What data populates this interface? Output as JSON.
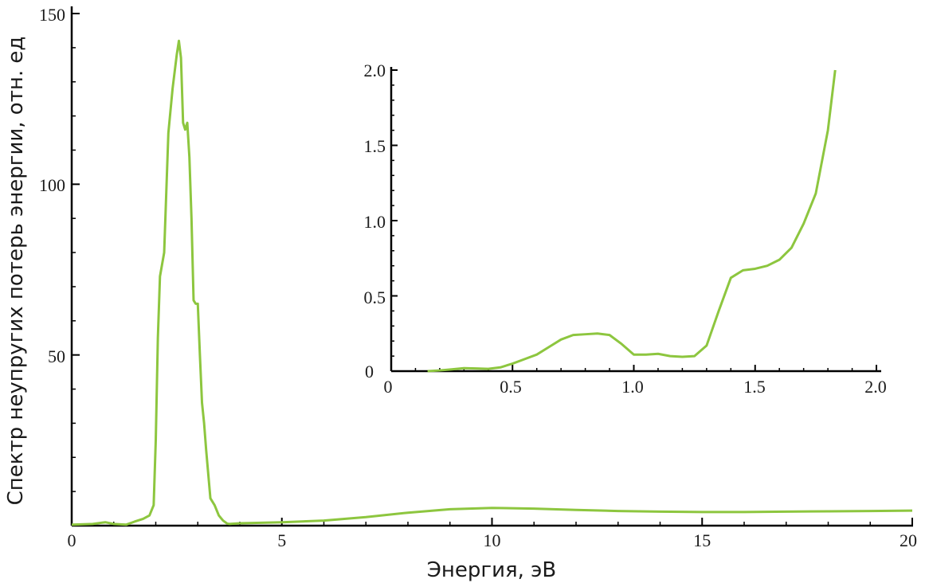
{
  "colors": {
    "line": "#8dc63f",
    "axis": "#000000"
  },
  "chart_data": [
    {
      "type": "line",
      "role": "main",
      "xlabel": "Энергия, эВ",
      "ylabel": "Спектр неупругих потерь энергии, отн. ед",
      "xlim": [
        0,
        20
      ],
      "ylim": [
        0,
        150
      ],
      "xticks": [
        0,
        5,
        10,
        15,
        20
      ],
      "xtick_labels": [
        "0",
        "5",
        "10",
        "15",
        "20"
      ],
      "yticks": [
        50,
        100,
        150
      ],
      "ytick_labels": [
        "50",
        "100",
        "150"
      ],
      "grid": false,
      "series": [
        {
          "x": [
            0,
            0.5,
            0.8,
            1.0,
            1.3,
            1.5,
            1.7,
            1.85,
            1.95,
            2.0,
            2.05,
            2.1,
            2.2,
            2.3,
            2.4,
            2.5,
            2.55,
            2.6,
            2.65,
            2.7,
            2.75,
            2.8,
            2.85,
            2.9,
            2.95,
            3.0,
            3.05,
            3.1,
            3.15,
            3.2,
            3.3,
            3.4,
            3.5,
            3.6,
            3.7,
            3.75,
            4.0,
            5.0,
            6.0,
            7.0,
            8.0,
            9.0,
            10.0,
            11.0,
            12.0,
            13.0,
            14.0,
            15.0,
            16.0,
            17.0,
            18.0,
            19.0,
            20.0
          ],
          "y": [
            0.3,
            0.5,
            1.0,
            0.5,
            0.3,
            1.2,
            2.0,
            3.0,
            6.0,
            25.0,
            55.0,
            73.0,
            80.0,
            115.0,
            128.0,
            138.0,
            142.0,
            137.0,
            118.0,
            116.0,
            118.0,
            108.0,
            90.0,
            66.0,
            65.0,
            65.0,
            50.0,
            36.0,
            30.0,
            22.0,
            8.0,
            6.0,
            3.0,
            1.5,
            0.6,
            0.5,
            0.7,
            1.0,
            1.5,
            2.5,
            3.8,
            4.8,
            5.2,
            5.0,
            4.6,
            4.3,
            4.1,
            4.0,
            4.0,
            4.1,
            4.2,
            4.3,
            4.4
          ]
        }
      ]
    },
    {
      "type": "line",
      "role": "inset",
      "xlim": [
        0,
        2.0
      ],
      "ylim": [
        0,
        2.0
      ],
      "xticks": [
        0,
        0.5,
        1.0,
        1.5,
        2.0
      ],
      "xtick_labels": [
        "0",
        "0.5",
        "1.0",
        "1.5",
        "2.0"
      ],
      "yticks": [
        0,
        0.5,
        1.0,
        1.5,
        2.0
      ],
      "ytick_labels": [
        "0",
        "0.5",
        "1.0",
        "1.5",
        "2.0"
      ],
      "grid": false,
      "series": [
        {
          "x": [
            0.15,
            0.2,
            0.25,
            0.3,
            0.35,
            0.4,
            0.45,
            0.5,
            0.55,
            0.6,
            0.65,
            0.7,
            0.75,
            0.8,
            0.85,
            0.9,
            0.95,
            1.0,
            1.05,
            1.1,
            1.15,
            1.2,
            1.25,
            1.3,
            1.35,
            1.4,
            1.45,
            1.5,
            1.55,
            1.6,
            1.65,
            1.7,
            1.75,
            1.8,
            1.83
          ],
          "y": [
            0.0,
            0.005,
            0.012,
            0.02,
            0.018,
            0.015,
            0.025,
            0.05,
            0.08,
            0.11,
            0.16,
            0.21,
            0.24,
            0.245,
            0.25,
            0.24,
            0.18,
            0.11,
            0.11,
            0.115,
            0.1,
            0.095,
            0.1,
            0.17,
            0.4,
            0.62,
            0.67,
            0.68,
            0.7,
            0.74,
            0.82,
            0.98,
            1.18,
            1.6,
            2.0
          ]
        }
      ]
    }
  ]
}
